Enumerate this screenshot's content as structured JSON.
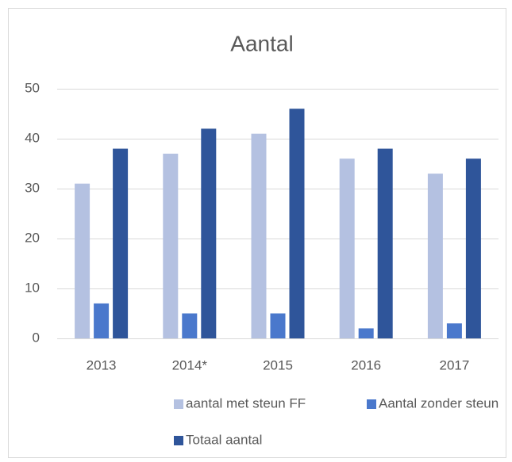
{
  "chart_data": {
    "type": "bar",
    "title": "Aantal",
    "categories": [
      "2013",
      "2014*",
      "2015",
      "2016",
      "2017"
    ],
    "series": [
      {
        "name": "aantal met steun FF",
        "color": "#b4c1e1",
        "values": [
          31,
          37,
          41,
          36,
          33
        ]
      },
      {
        "name": "Aantal zonder steun",
        "color": "#4a78cc",
        "values": [
          7,
          5,
          5,
          2,
          3
        ]
      },
      {
        "name": "Totaal aantal",
        "color": "#2f559a",
        "values": [
          38,
          42,
          46,
          38,
          36
        ]
      }
    ],
    "ylim": [
      0,
      50
    ],
    "yticks": [
      0,
      10,
      20,
      30,
      40,
      50
    ],
    "grid": true,
    "legend": "bottom"
  }
}
